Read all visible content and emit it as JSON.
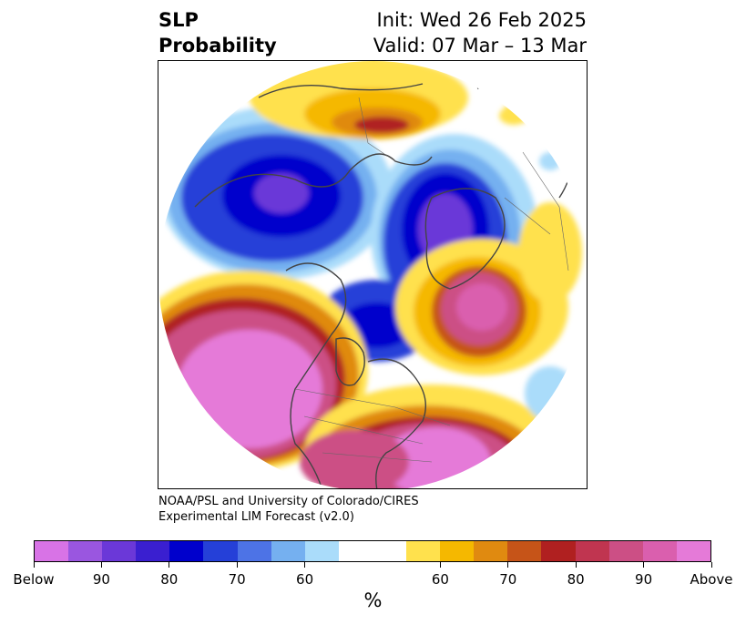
{
  "title": {
    "left_line1": "SLP",
    "left_line2": "Probability",
    "right_line1": "Init: Wed 26 Feb 2025",
    "right_line2": "Valid: 07 Mar – 13 Mar"
  },
  "credit": {
    "line1": "NOAA/PSL and University of Colorado/CIRES",
    "line2": "Experimental LIM Forecast (v2.0)"
  },
  "colorbar": {
    "colors": [
      "#d873e6",
      "#9a56e0",
      "#6b38d8",
      "#3a1fd0",
      "#0000cc",
      "#2540d8",
      "#4d73e6",
      "#75b0f0",
      "#aadcfa",
      "#ffffff",
      "#ffffff",
      "#ffe14d",
      "#f5b800",
      "#e08a10",
      "#c65418",
      "#b02020",
      "#c03550",
      "#cc4f85",
      "#da5fae",
      "#e57ad8"
    ],
    "labels": [
      "Below",
      "90",
      "80",
      "70",
      "60",
      "60",
      "70",
      "80",
      "90",
      "Above"
    ],
    "unit": "%"
  },
  "map": {
    "projection": "north-polar-stereographic",
    "variable": "SLP"
  }
}
